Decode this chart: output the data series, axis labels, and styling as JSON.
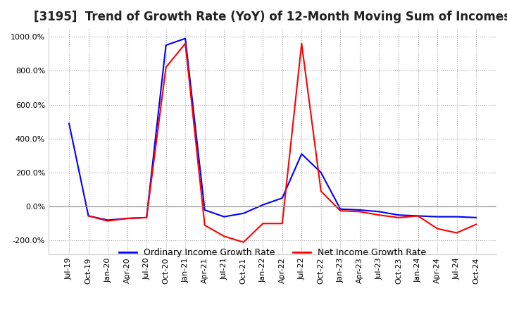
{
  "title": "[3195]  Trend of Growth Rate (YoY) of 12-Month Moving Sum of Incomes",
  "title_fontsize": 12,
  "ylim": [
    -280,
    1050
  ],
  "yticks": [
    -200,
    0,
    200,
    400,
    600,
    800,
    1000
  ],
  "background_color": "#ffffff",
  "grid_color": "#aaaaaa",
  "ordinary_color": "#0000ff",
  "net_color": "#ff0000",
  "legend_labels": [
    "Ordinary Income Growth Rate",
    "Net Income Growth Rate"
  ],
  "x_labels": [
    "Jul-19",
    "Oct-19",
    "Jan-20",
    "Apr-20",
    "Jul-20",
    "Oct-20",
    "Jan-21",
    "Apr-21",
    "Jul-21",
    "Oct-21",
    "Jan-22",
    "Apr-22",
    "Jul-22",
    "Oct-22",
    "Jan-23",
    "Apr-23",
    "Jul-23",
    "Oct-23",
    "Jan-24",
    "Apr-24",
    "Jul-24",
    "Oct-24"
  ],
  "ordinary_income": [
    490,
    -55,
    -80,
    -70,
    -65,
    950,
    990,
    -20,
    -60,
    -40,
    10,
    50,
    310,
    200,
    -15,
    -20,
    -30,
    -50,
    -55,
    -60,
    -60,
    -65
  ],
  "net_income": [
    null,
    -55,
    -85,
    -70,
    -65,
    820,
    960,
    -110,
    -175,
    -210,
    -100,
    -100,
    960,
    90,
    -25,
    -30,
    -50,
    -65,
    -55,
    -130,
    -155,
    -105
  ]
}
